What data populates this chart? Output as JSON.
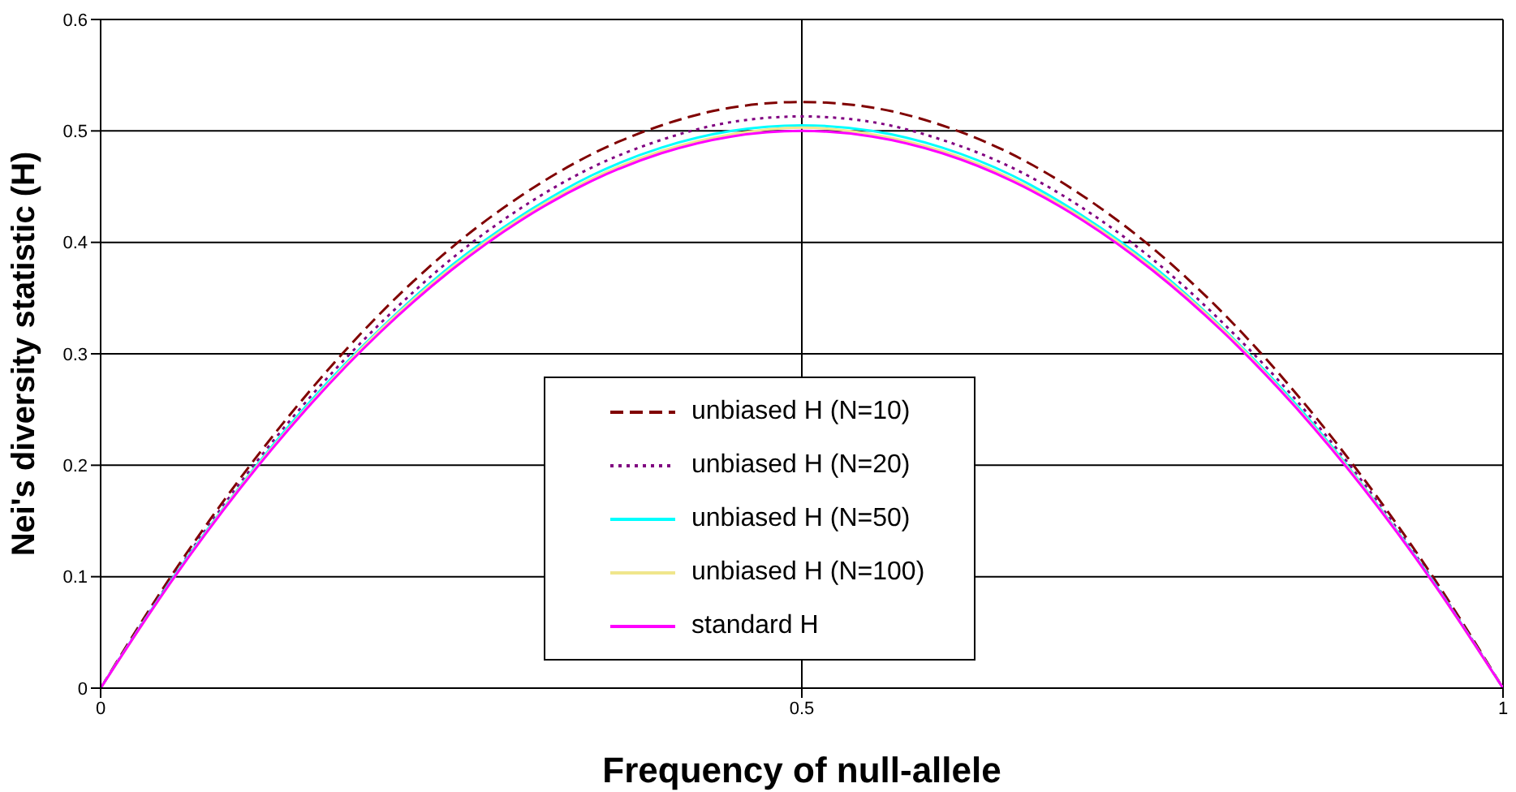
{
  "chart_data": {
    "type": "line",
    "xlabel": "Frequency of null-allele",
    "ylabel": "Nei's diversity statistic (H)",
    "x": [
      0,
      0.05,
      0.1,
      0.15,
      0.2,
      0.25,
      0.3,
      0.35,
      0.4,
      0.45,
      0.5,
      0.55,
      0.6,
      0.65,
      0.7,
      0.75,
      0.8,
      0.85,
      0.9,
      0.95,
      1
    ],
    "xlim": [
      0,
      1
    ],
    "xticks": [
      0,
      0.5,
      1
    ],
    "ylim": [
      0,
      0.6
    ],
    "yticks": [
      0,
      0.1,
      0.2,
      0.3,
      0.4,
      0.5,
      0.6
    ],
    "grid": true,
    "legend": "bottom",
    "marker": "none",
    "series": [
      {
        "name": "unbiased H (N=10)",
        "color": "#800000",
        "line_style": "dashed",
        "values": [
          0,
          0.1,
          0.189,
          0.268,
          0.337,
          0.395,
          0.442,
          0.479,
          0.505,
          0.521,
          0.526,
          0.521,
          0.505,
          0.479,
          0.442,
          0.395,
          0.337,
          0.268,
          0.189,
          0.1,
          0
        ]
      },
      {
        "name": "unbiased H (N=20)",
        "color": "#800080",
        "line_style": "dotted",
        "values": [
          0,
          0.097,
          0.185,
          0.262,
          0.328,
          0.385,
          0.431,
          0.467,
          0.492,
          0.508,
          0.513,
          0.508,
          0.492,
          0.467,
          0.431,
          0.385,
          0.328,
          0.262,
          0.185,
          0.097,
          0
        ]
      },
      {
        "name": "unbiased H (N=50)",
        "color": "#00ffff",
        "line_style": "solid",
        "values": [
          0,
          0.096,
          0.182,
          0.258,
          0.323,
          0.379,
          0.424,
          0.46,
          0.485,
          0.5,
          0.505,
          0.5,
          0.485,
          0.46,
          0.424,
          0.379,
          0.323,
          0.258,
          0.182,
          0.096,
          0
        ]
      },
      {
        "name": "unbiased H (N=100)",
        "color": "#f0e68c",
        "line_style": "solid",
        "values": [
          0,
          0.095,
          0.181,
          0.256,
          0.322,
          0.377,
          0.422,
          0.457,
          0.482,
          0.497,
          0.503,
          0.497,
          0.482,
          0.457,
          0.422,
          0.377,
          0.322,
          0.256,
          0.181,
          0.095,
          0
        ]
      },
      {
        "name": "standard H",
        "color": "#ff00ff",
        "line_style": "solid",
        "values": [
          0,
          0.095,
          0.18,
          0.255,
          0.32,
          0.375,
          0.42,
          0.455,
          0.48,
          0.495,
          0.5,
          0.495,
          0.48,
          0.455,
          0.42,
          0.375,
          0.32,
          0.255,
          0.18,
          0.095,
          0
        ]
      }
    ]
  }
}
